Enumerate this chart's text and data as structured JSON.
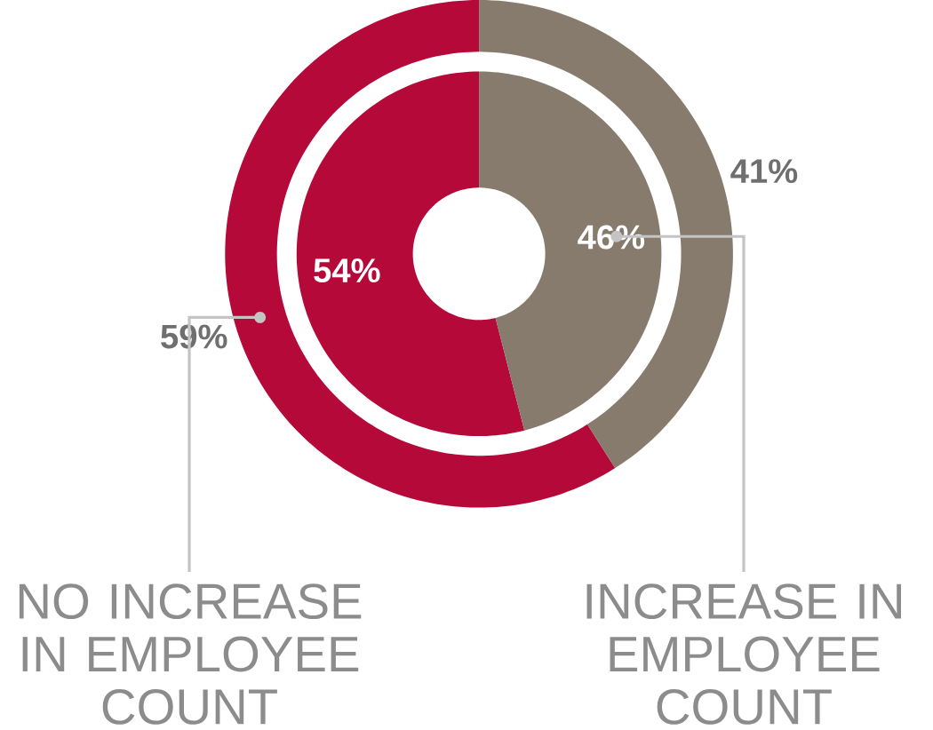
{
  "chart_data": {
    "type": "donut",
    "categories": [
      "NO INCREASE IN EMPLOYEE COUNT",
      "INCREASE IN EMPLOYEE COUNT"
    ],
    "colors": [
      "#b5093a",
      "#877b6d"
    ],
    "series": [
      {
        "values": [
          59,
          41
        ],
        "value_labels": [
          "59%",
          "41%"
        ]
      },
      {
        "values": [
          54,
          46
        ],
        "value_labels": [
          "54%",
          "46%"
        ]
      }
    ]
  }
}
